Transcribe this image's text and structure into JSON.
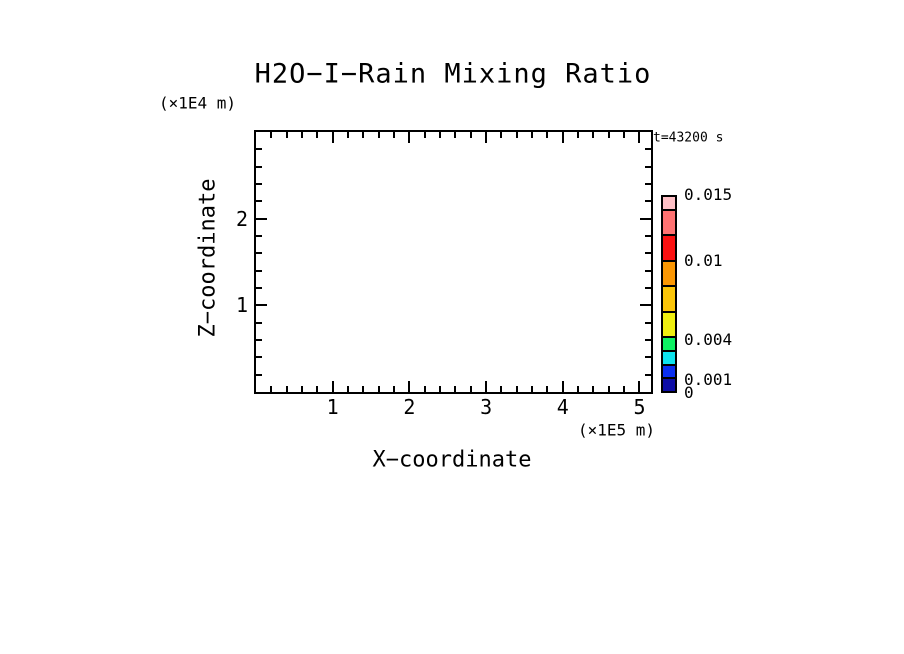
{
  "title": "H2O−I−Rain Mixing Ratio",
  "timestamp": "t=43200 s",
  "x_axis": {
    "label": "X−coordinate",
    "unit": "(×1E5 m)",
    "min": 0,
    "max": 5.15,
    "major_ticks": [
      1,
      2,
      3,
      4,
      5
    ],
    "major_tick_labels": [
      "1",
      "2",
      "3",
      "4",
      "5"
    ],
    "minor_step": 0.2
  },
  "y_axis": {
    "label": "Z−coordinate",
    "unit": "(×1E4 m)",
    "min": 0,
    "max": 3,
    "major_ticks": [
      1,
      2
    ],
    "major_tick_labels": [
      "1",
      "2"
    ],
    "minor_step": 0.2
  },
  "colorbar": {
    "levels": [
      0,
      0.001,
      0.002,
      0.003,
      0.004,
      0.006,
      0.008,
      0.01,
      0.012,
      0.014,
      0.015
    ],
    "colors": [
      "#0d0da6",
      "#0a2ff0",
      "#0de3ee",
      "#0df163",
      "#efef10",
      "#fbc508",
      "#fb9703",
      "#fb1111",
      "#ff7272",
      "#ffc0c6"
    ],
    "labels": [
      {
        "value": 0,
        "text": "0"
      },
      {
        "value": 0.001,
        "text": "0.001"
      },
      {
        "value": 0.004,
        "text": "0.004"
      },
      {
        "value": 0.01,
        "text": "0.01"
      },
      {
        "value": 0.015,
        "text": "0.015"
      }
    ]
  },
  "chart_data": {
    "type": "heatmap",
    "title": "H2O−I−Rain Mixing Ratio",
    "xlabel": "X−coordinate (×1E5 m)",
    "ylabel": "Z−coordinate (×1E4 m)",
    "xlim": [
      0,
      5.15
    ],
    "ylim": [
      0,
      3
    ],
    "x_tick_labels": [
      "1",
      "2",
      "3",
      "4",
      "5"
    ],
    "y_tick_labels": [
      "1",
      "2"
    ],
    "minor_tick_step": 0.2,
    "annotation": "t=43200 s",
    "grid": false,
    "legend_position": "right",
    "colorbar_levels": [
      0,
      0.001,
      0.002,
      0.003,
      0.004,
      0.006,
      0.008,
      0.01,
      0.012,
      0.014,
      0.015
    ],
    "colorbar_shown_labels": [
      "0",
      "0.001",
      "0.004",
      "0.01",
      "0.015"
    ],
    "colorbar_colors_low_to_high": [
      "#0d0da6",
      "#0a2ff0",
      "#0de3ee",
      "#0df163",
      "#efef10",
      "#fbc508",
      "#fb9703",
      "#fb1111",
      "#ff7272",
      "#ffc0c6"
    ],
    "values": [],
    "note": "plot interior is blank — no contour fill rendered at this time step"
  }
}
